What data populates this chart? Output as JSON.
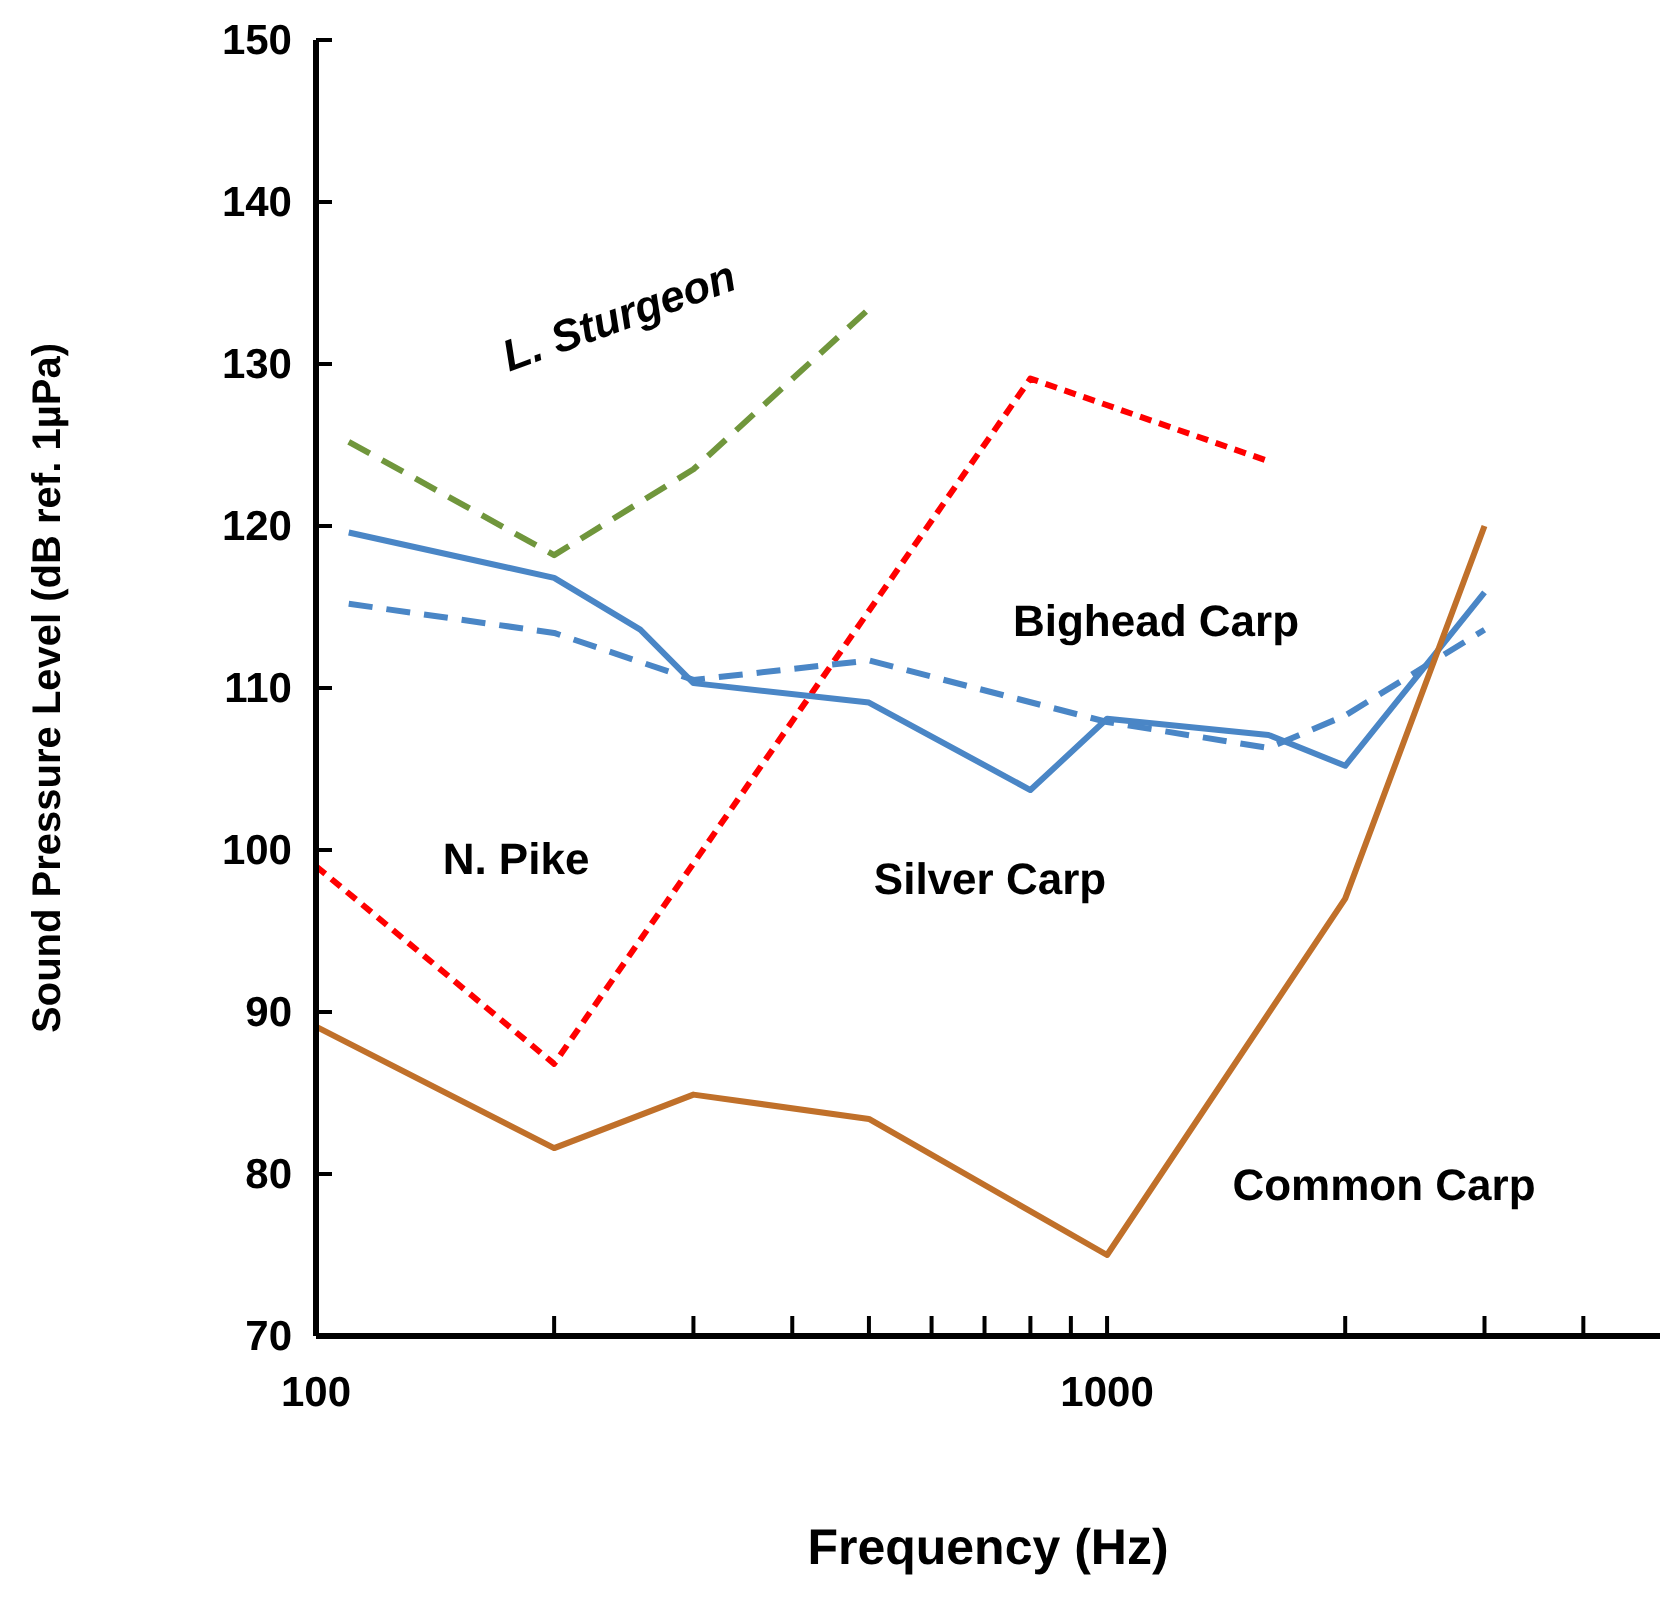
{
  "chart_data": {
    "type": "line",
    "xlabel": "Frequency (Hz)",
    "ylabel": "Sound Pressure Level (dB ref. 1µPa)",
    "log": "x",
    "xlim": [
      100,
      5000
    ],
    "xticks": [
      100,
      {
        "value": 200,
        "label": null
      },
      {
        "value": 300,
        "label": null
      },
      {
        "value": 400,
        "label": null
      },
      {
        "value": 500,
        "label": null
      },
      {
        "value": 600,
        "label": null
      },
      {
        "value": 700,
        "label": null
      },
      {
        "value": 800,
        "label": null
      },
      {
        "value": 900,
        "label": null
      },
      1000,
      {
        "value": 2000,
        "label": null
      },
      {
        "value": 3000,
        "label": null
      },
      {
        "value": 4000,
        "label": null
      }
    ],
    "ylim": [
      70,
      150
    ],
    "yticks": [
      70,
      80,
      90,
      100,
      110,
      120,
      130,
      140,
      150
    ],
    "grid": false,
    "legend": false,
    "marker": "none",
    "series": [
      {
        "name": "L. Sturgeon",
        "color": "#70963c",
        "line_style": "dashed",
        "x": [
          110,
          200,
          300,
          500
        ],
        "values": [
          125.2,
          118.2,
          123.5,
          133.4
        ]
      },
      {
        "name": "N. Pike",
        "color": "#ff0000",
        "line_style": "dotted",
        "x": [
          100,
          200,
          800,
          1600
        ],
        "values": [
          99,
          86.8,
          129.1,
          124
        ]
      },
      {
        "name": "Bighead Carp",
        "color": "#4a86c6",
        "line_style": "dashed",
        "x": [
          110,
          200,
          300,
          500,
          1000,
          1600,
          2000,
          3000
        ],
        "values": [
          115.2,
          113.4,
          110.5,
          111.7,
          107.9,
          106.3,
          108.3,
          113.6
        ]
      },
      {
        "name": "Silver Carp",
        "color": "#4a86c6",
        "line_style": "solid",
        "x": [
          110,
          200,
          257,
          300,
          500,
          800,
          1000,
          1600,
          2000,
          3000
        ],
        "values": [
          119.6,
          116.8,
          113.6,
          110.3,
          109.1,
          103.7,
          108.1,
          107.1,
          105.2,
          115.9
        ]
      },
      {
        "name": "Common Carp",
        "color": "#c0702a",
        "line_style": "solid",
        "x": [
          100,
          200,
          300,
          500,
          1000,
          2000,
          3000
        ],
        "values": [
          89.1,
          81.6,
          84.9,
          83.4,
          75,
          97,
          120
        ]
      }
    ]
  }
}
